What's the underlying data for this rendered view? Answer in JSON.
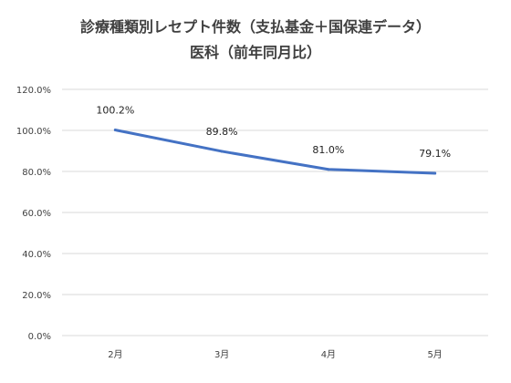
{
  "chart_data": {
    "type": "line",
    "title": "診療種類別レセプト件数（支払基金＋国保連データ）",
    "subtitle": "医科（前年同月比）",
    "categories": [
      "2月",
      "3月",
      "4月",
      "5月"
    ],
    "series": [
      {
        "values": [
          100.2,
          89.8,
          81.0,
          79.1
        ],
        "color": "#4472c4",
        "data_labels": [
          "100.2%",
          "89.8%",
          "81.0%",
          "79.1%"
        ]
      }
    ],
    "y_ticks": [
      "0.0%",
      "20.0%",
      "40.0%",
      "60.0%",
      "80.0%",
      "100.0%",
      "120.0%"
    ],
    "ylim": [
      0,
      120
    ],
    "grid": true,
    "gridline_color": "#d9d9d9",
    "legend": "none"
  }
}
